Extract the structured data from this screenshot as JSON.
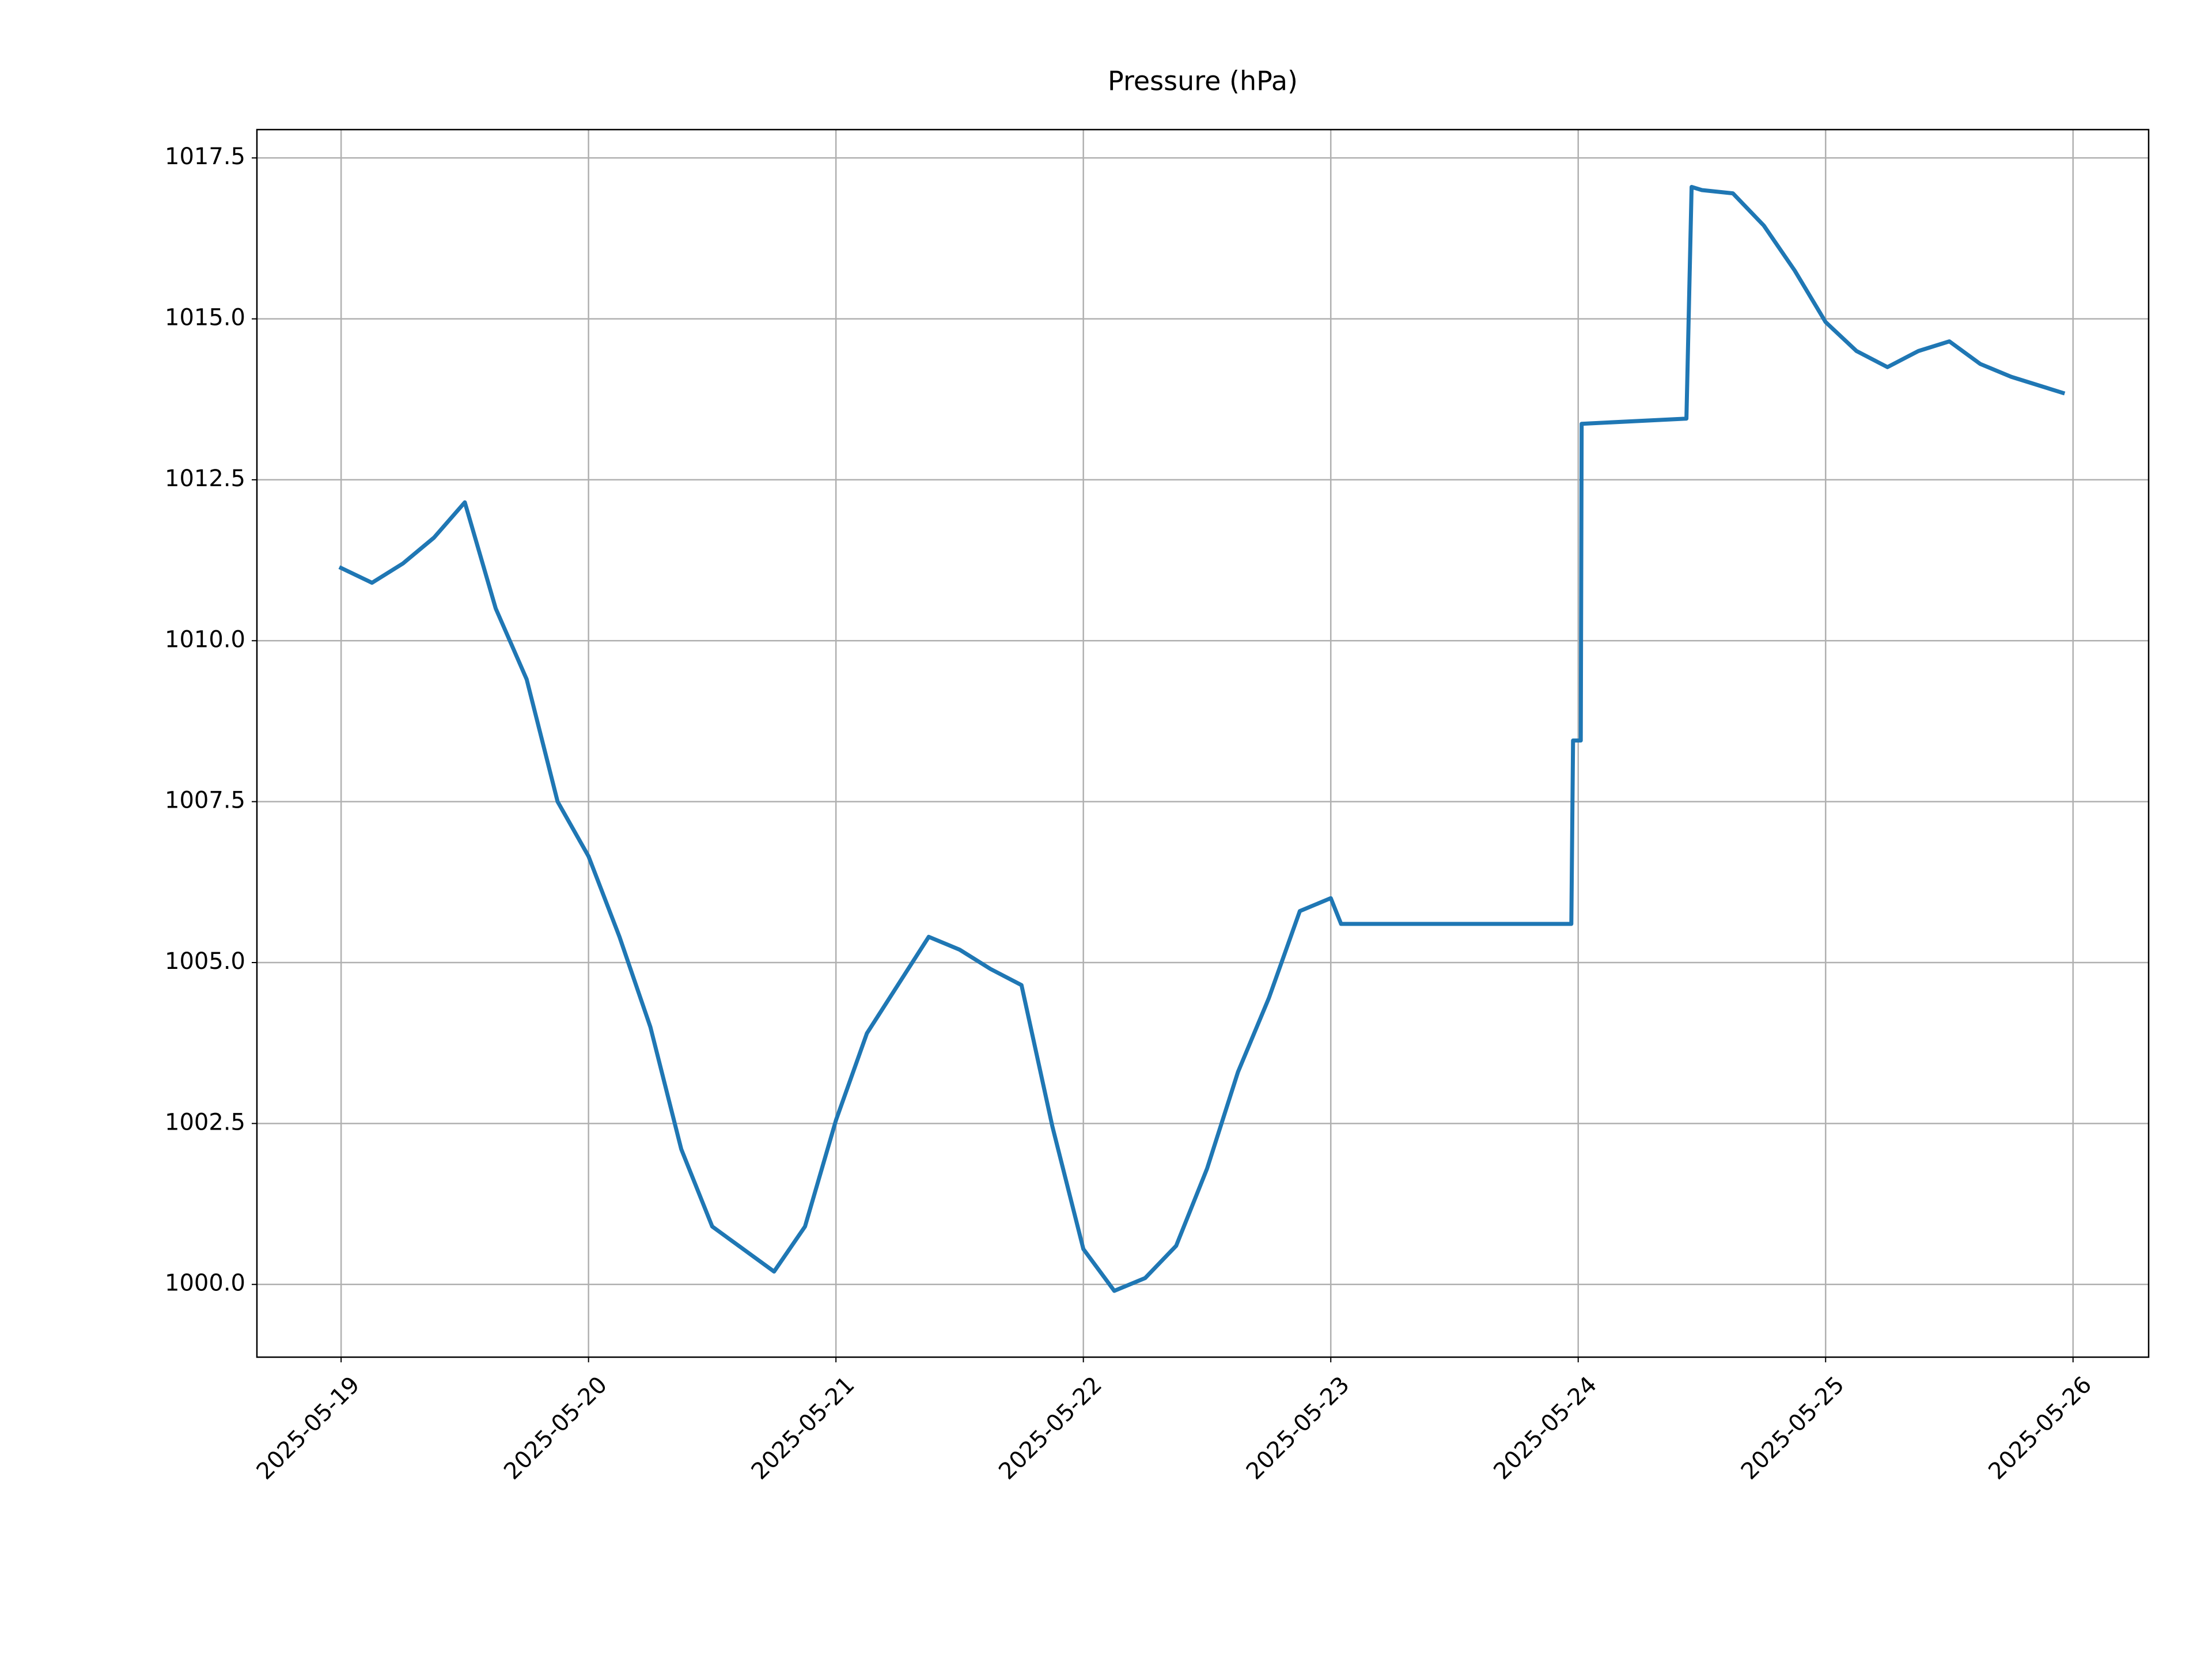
{
  "chart_data": {
    "type": "line",
    "title": "Pressure (hPa)",
    "color": "#1f77b4",
    "grid": true,
    "x": [
      "2025-05-19T00:00",
      "2025-05-19T03:00",
      "2025-05-19T06:00",
      "2025-05-19T09:00",
      "2025-05-19T12:00",
      "2025-05-19T15:00",
      "2025-05-19T18:00",
      "2025-05-19T21:00",
      "2025-05-20T00:00",
      "2025-05-20T03:00",
      "2025-05-20T06:00",
      "2025-05-20T09:00",
      "2025-05-20T12:00",
      "2025-05-20T15:00",
      "2025-05-20T18:00",
      "2025-05-20T21:00",
      "2025-05-21T00:00",
      "2025-05-21T03:00",
      "2025-05-21T06:00",
      "2025-05-21T09:00",
      "2025-05-21T12:00",
      "2025-05-21T15:00",
      "2025-05-21T18:00",
      "2025-05-21T21:00",
      "2025-05-22T00:00",
      "2025-05-22T03:00",
      "2025-05-22T06:00",
      "2025-05-22T09:00",
      "2025-05-22T12:00",
      "2025-05-22T15:00",
      "2025-05-22T18:00",
      "2025-05-22T21:00",
      "2025-05-23T00:00",
      "2025-05-23T01:00",
      "2025-05-23T12:00",
      "2025-05-23T23:20",
      "2025-05-23T23:30",
      "2025-05-24T00:15",
      "2025-05-24T00:20",
      "2025-05-24T10:30",
      "2025-05-24T11:00",
      "2025-05-24T12:00",
      "2025-05-24T15:00",
      "2025-05-24T18:00",
      "2025-05-24T21:00",
      "2025-05-25T00:00",
      "2025-05-25T03:00",
      "2025-05-25T06:00",
      "2025-05-25T09:00",
      "2025-05-25T12:00",
      "2025-05-25T15:00",
      "2025-05-25T18:00",
      "2025-05-25T21:00",
      "2025-05-25T23:00"
    ],
    "values": [
      1011.13,
      1010.9,
      1011.2,
      1011.6,
      1012.15,
      1010.5,
      1009.4,
      1007.5,
      1006.65,
      1005.4,
      1004.0,
      1002.1,
      1000.9,
      1000.55,
      1000.2,
      1000.9,
      1002.55,
      1003.9,
      1004.65,
      1005.4,
      1005.2,
      1004.9,
      1004.65,
      1002.45,
      1000.55,
      999.9,
      1000.1,
      1000.6,
      1001.8,
      1003.3,
      1004.45,
      1005.8,
      1006.0,
      1005.6,
      1005.6,
      1005.6,
      1008.45,
      1008.45,
      1013.37,
      1013.45,
      1017.05,
      1017.0,
      1016.95,
      1016.45,
      1015.75,
      1014.95,
      1014.5,
      1014.25,
      1014.5,
      1014.65,
      1014.3,
      1014.1,
      1013.95,
      1013.85
    ],
    "xlim": [
      "2025-05-18T15:50",
      "2025-05-26T07:20"
    ],
    "xticks": [
      "2025-05-19",
      "2025-05-20",
      "2025-05-21",
      "2025-05-22",
      "2025-05-23",
      "2025-05-24",
      "2025-05-25",
      "2025-05-26"
    ],
    "ylim": [
      998.87,
      1017.94
    ],
    "yticks": [
      {
        "value": 1000,
        "label": "1000.0"
      },
      1002.5,
      {
        "value": 1005,
        "label": "1005.0"
      },
      1007.5,
      {
        "value": 1010,
        "label": "1010.0"
      },
      1012.5,
      {
        "value": 1015,
        "label": "1015.0"
      },
      1017.5
    ]
  }
}
